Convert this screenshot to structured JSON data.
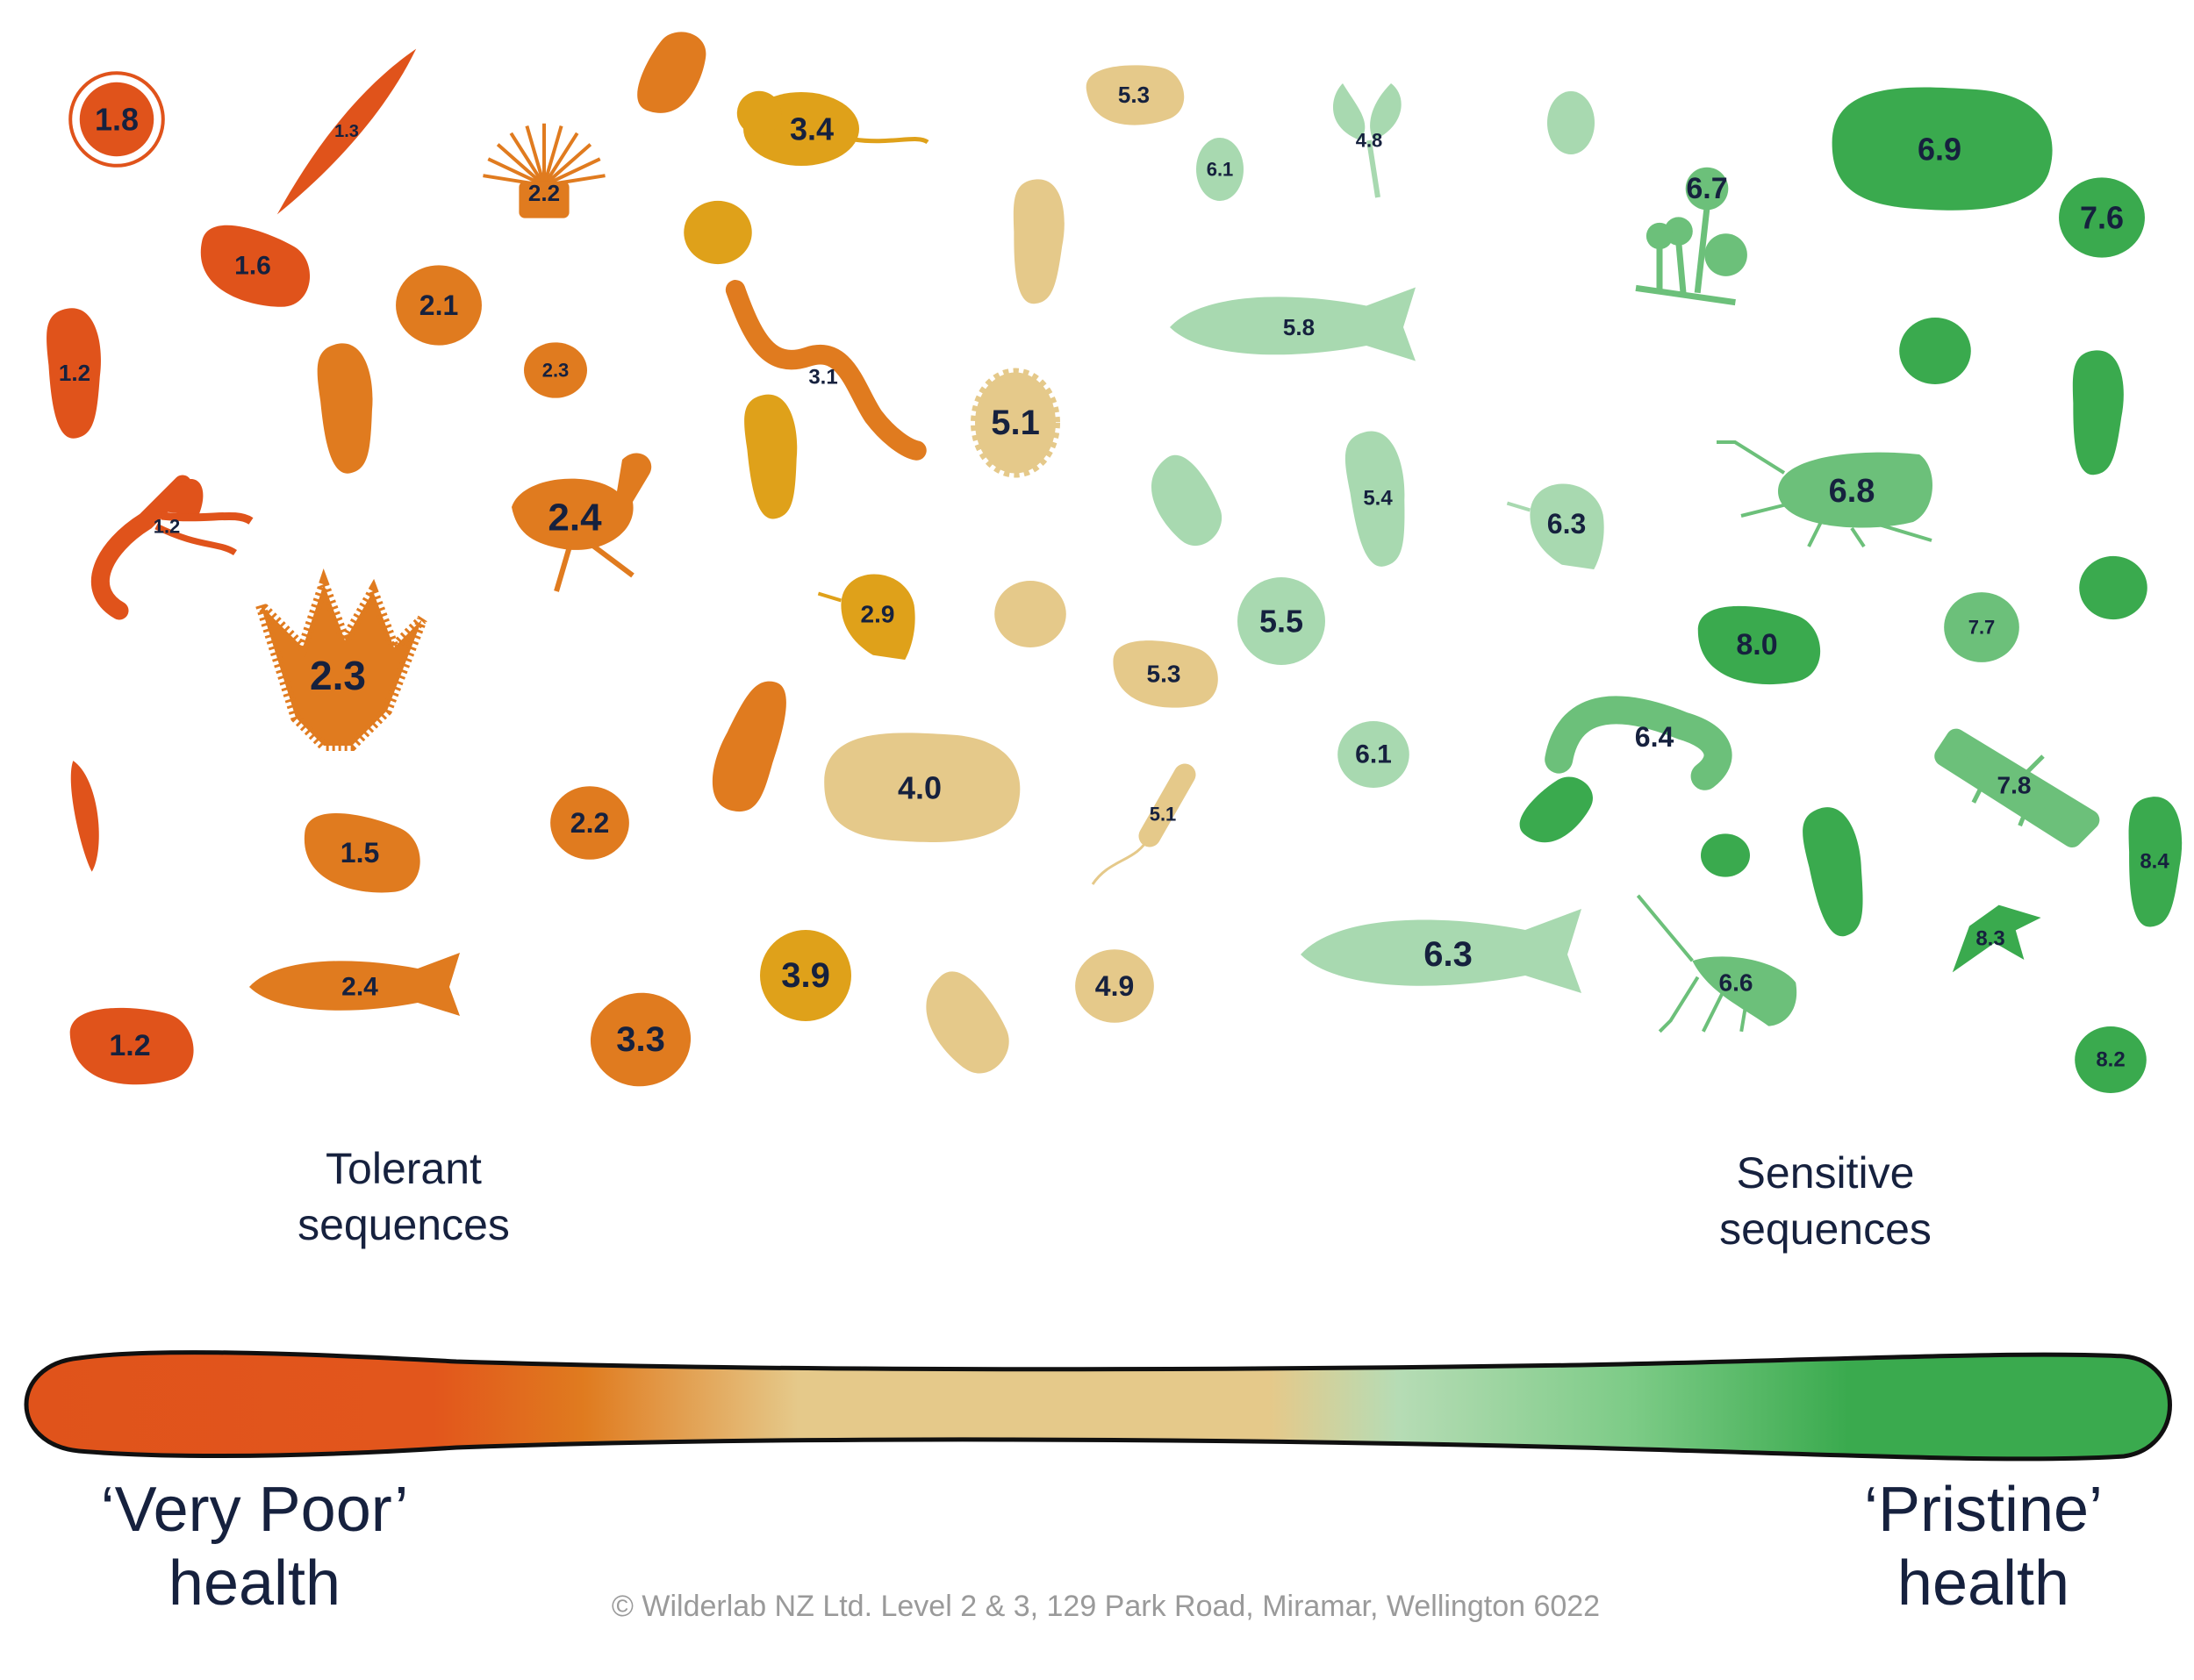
{
  "labels": {
    "tolerant_line1": "Tolerant",
    "tolerant_line2": "sequences",
    "sensitive_line1": "Sensitive",
    "sensitive_line2": "sequences",
    "very_poor_line1": "‘Very Poor’",
    "very_poor_line2": "health",
    "pristine_line1": "‘Pristine’",
    "pristine_line2": "health",
    "copyright": "© Wilderlab NZ Ltd. Level 2 & 3, 129 Park Road, Miramar, Wellington 6022"
  },
  "colors": {
    "very_poor": "#e0531b",
    "poor": "#e07b1f",
    "mid_orange": "#dfa11a",
    "sand": "#e5c98a",
    "light_green": "#a8d9b0",
    "mid_green": "#6cc07a",
    "pristine": "#3aaa4e",
    "text": "#16213e",
    "footer": "#9a9a9a"
  },
  "scores": [
    {
      "value": "1.8",
      "shape": "circle-ring",
      "color": "very_poor"
    },
    {
      "value": "1.3",
      "shape": "needle",
      "color": "very_poor"
    },
    {
      "value": "1.6",
      "shape": "bean",
      "color": "very_poor"
    },
    {
      "value": "1.2",
      "shape": "bean-vertical",
      "color": "very_poor"
    },
    {
      "value": "1.2",
      "shape": "seaweed",
      "color": "very_poor"
    },
    {
      "value": "",
      "shape": "sliver",
      "color": "very_poor"
    },
    {
      "value": "1.2",
      "shape": "bean",
      "color": "very_poor"
    },
    {
      "value": "2.2",
      "shape": "anemone",
      "color": "poor"
    },
    {
      "value": "2.1",
      "shape": "blob",
      "color": "poor"
    },
    {
      "value": "2.3",
      "shape": "blob-small",
      "color": "poor"
    },
    {
      "value": "",
      "shape": "bean-vertical",
      "color": "poor"
    },
    {
      "value": "2.4",
      "shape": "bird",
      "color": "poor"
    },
    {
      "value": "2.3",
      "shape": "plant",
      "color": "poor"
    },
    {
      "value": "1.5",
      "shape": "bean",
      "color": "poor"
    },
    {
      "value": "2.2",
      "shape": "blob",
      "color": "poor"
    },
    {
      "value": "2.4",
      "shape": "fish",
      "color": "poor"
    },
    {
      "value": "3.3",
      "shape": "blob",
      "color": "poor"
    },
    {
      "value": "",
      "shape": "bean-vertical",
      "color": "poor"
    },
    {
      "value": "3.1",
      "shape": "worm",
      "color": "poor"
    },
    {
      "value": "",
      "shape": "bean",
      "color": "poor"
    },
    {
      "value": "3.4",
      "shape": "mouse",
      "color": "mid_orange"
    },
    {
      "value": "",
      "shape": "blob",
      "color": "mid_orange"
    },
    {
      "value": "",
      "shape": "bean-vertical",
      "color": "mid_orange"
    },
    {
      "value": "2.9",
      "shape": "leaf",
      "color": "mid_orange"
    },
    {
      "value": "3.9",
      "shape": "circle",
      "color": "mid_orange"
    },
    {
      "value": "5.3",
      "shape": "bean",
      "color": "sand"
    },
    {
      "value": "",
      "shape": "bean-vertical",
      "color": "sand"
    },
    {
      "value": "5.1",
      "shape": "scalloped",
      "color": "sand"
    },
    {
      "value": "",
      "shape": "blob",
      "color": "sand"
    },
    {
      "value": "4.0",
      "shape": "blob-large",
      "color": "sand"
    },
    {
      "value": "5.3",
      "shape": "bean",
      "color": "sand"
    },
    {
      "value": "5.1",
      "shape": "sperm",
      "color": "sand"
    },
    {
      "value": "4.9",
      "shape": "blob",
      "color": "sand"
    },
    {
      "value": "",
      "shape": "bean",
      "color": "sand"
    },
    {
      "value": "6.1",
      "shape": "oval",
      "color": "light_green"
    },
    {
      "value": "4.8",
      "shape": "sprout",
      "color": "light_green"
    },
    {
      "value": "",
      "shape": "oval",
      "color": "light_green"
    },
    {
      "value": "5.8",
      "shape": "fish",
      "color": "light_green"
    },
    {
      "value": "",
      "shape": "bean",
      "color": "light_green"
    },
    {
      "value": "5.4",
      "shape": "bean-vertical",
      "color": "light_green"
    },
    {
      "value": "5.5",
      "shape": "circle",
      "color": "light_green"
    },
    {
      "value": "6.1",
      "shape": "blob",
      "color": "light_green"
    },
    {
      "value": "6.3",
      "shape": "leaf",
      "color": "light_green"
    },
    {
      "value": "6.3",
      "shape": "fish",
      "color": "light_green"
    },
    {
      "value": "6.7",
      "shape": "moss",
      "color": "mid_green"
    },
    {
      "value": "6.8",
      "shape": "insect",
      "color": "mid_green"
    },
    {
      "value": "6.4",
      "shape": "larva",
      "color": "mid_green"
    },
    {
      "value": "6.6",
      "shape": "crayfish",
      "color": "mid_green"
    },
    {
      "value": "7.7",
      "shape": "blob",
      "color": "mid_green"
    },
    {
      "value": "7.8",
      "shape": "nymph",
      "color": "mid_green"
    },
    {
      "value": "6.9",
      "shape": "blob-large",
      "color": "pristine"
    },
    {
      "value": "7.6",
      "shape": "blob",
      "color": "pristine"
    },
    {
      "value": "",
      "shape": "blob",
      "color": "pristine"
    },
    {
      "value": "",
      "shape": "bean-vertical",
      "color": "pristine"
    },
    {
      "value": "",
      "shape": "blob",
      "color": "pristine"
    },
    {
      "value": "8.0",
      "shape": "bean",
      "color": "pristine"
    },
    {
      "value": "",
      "shape": "bean",
      "color": "pristine"
    },
    {
      "value": "",
      "shape": "blob-small",
      "color": "pristine"
    },
    {
      "value": "",
      "shape": "bean-vertical",
      "color": "pristine"
    },
    {
      "value": "8.4",
      "shape": "bean-vertical",
      "color": "pristine"
    },
    {
      "value": "8.3",
      "shape": "flag",
      "color": "pristine"
    },
    {
      "value": "8.2",
      "shape": "blob",
      "color": "pristine"
    }
  ]
}
